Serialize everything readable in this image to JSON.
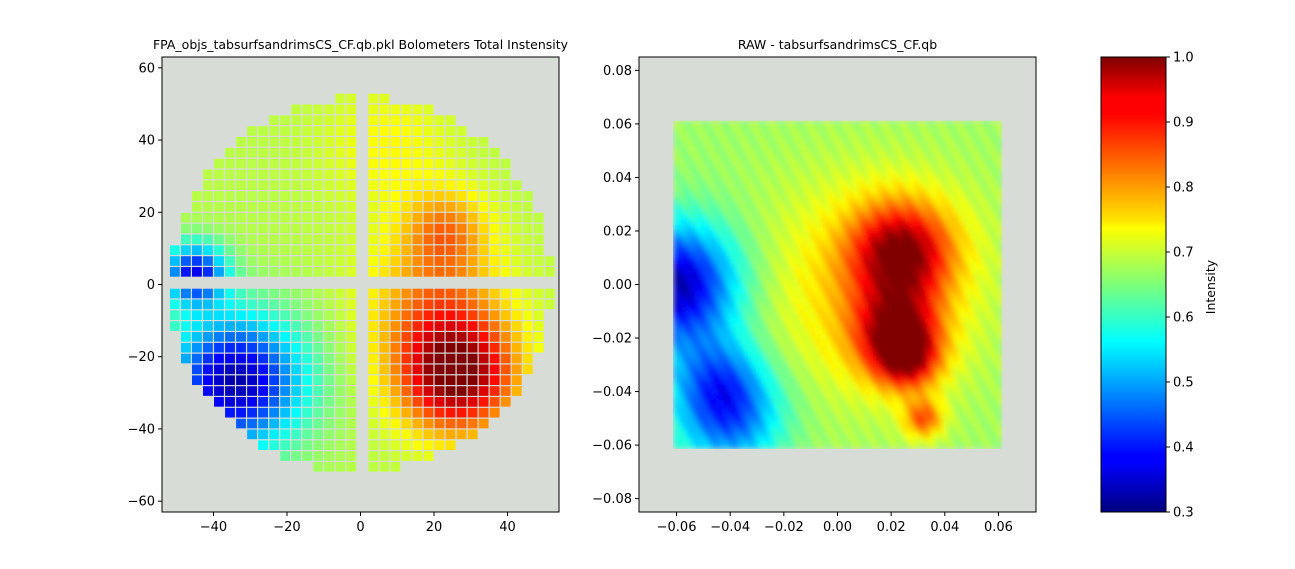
{
  "chart_data": [
    {
      "type": "heatmap",
      "title": "FPA_objs_tabsurfsandrimsCS_CF.qb.pkl Bolometers Total Instensity",
      "xlim": [
        -54,
        54
      ],
      "ylim": [
        -63,
        63
      ],
      "xticks": [
        -40,
        -20,
        0,
        20,
        40
      ],
      "xtick_labels": [
        "−40",
        "−20",
        "0",
        "20",
        "40"
      ],
      "yticks": [
        -60,
        -40,
        -20,
        0,
        20,
        40,
        60
      ],
      "ytick_labels": [
        "−60",
        "−40",
        "−20",
        "0",
        "20",
        "40",
        "60"
      ],
      "grid": false,
      "background_color": "#d8dcd6",
      "cell_pitch": 3,
      "focal_plane_radius": 52,
      "quadrant_gap_x": [
        -1,
        1
      ],
      "quadrant_gap_y": [
        -1,
        1
      ],
      "intensity_blobs": [
        {
          "x": 26,
          "y": -25,
          "sigma": 11,
          "amp": 0.32
        },
        {
          "x": 20,
          "y": -5,
          "sigma": 13,
          "amp": 0.12
        },
        {
          "x": 23,
          "y": 15,
          "sigma": 8,
          "amp": 0.12
        },
        {
          "x": -34,
          "y": -27,
          "sigma": 13,
          "amp": -0.36
        },
        {
          "x": -45,
          "y": 3,
          "sigma": 6,
          "amp": -0.3
        },
        {
          "x": 8,
          "y": 38,
          "sigma": 12,
          "amp": 0.05
        }
      ],
      "intensity_base": 0.69,
      "intensity_range": [
        0.3,
        1.0
      ]
    },
    {
      "type": "heatmap",
      "title": "RAW - tabsurfsandrimsCS_CF.qb",
      "xlim": [
        -0.074,
        0.074
      ],
      "ylim": [
        -0.085,
        0.085
      ],
      "xticks": [
        -0.06,
        -0.04,
        -0.02,
        0.0,
        0.02,
        0.04,
        0.06
      ],
      "xtick_labels": [
        "−0.06",
        "−0.04",
        "−0.02",
        "0.00",
        "0.02",
        "0.04",
        "0.06"
      ],
      "yticks": [
        -0.08,
        -0.06,
        -0.04,
        -0.02,
        0.0,
        0.02,
        0.04,
        0.06,
        0.08
      ],
      "ytick_labels": [
        "−0.08",
        "−0.06",
        "−0.04",
        "−0.02",
        "0.00",
        "0.02",
        "0.04",
        "0.06",
        "0.08"
      ],
      "grid": false,
      "background_color": "#d8dcd6",
      "data_extent": [
        -0.0612,
        0.0612,
        -0.0612,
        0.0612
      ],
      "intensity_blobs": [
        {
          "x": 0.024,
          "y": 0.012,
          "sigma": 0.013,
          "amp": 0.28
        },
        {
          "x": 0.022,
          "y": -0.018,
          "sigma": 0.011,
          "amp": 0.26
        },
        {
          "x": 0.026,
          "y": -0.028,
          "sigma": 0.008,
          "amp": 0.2
        },
        {
          "x": 0.012,
          "y": 0.0,
          "sigma": 0.028,
          "amp": 0.1
        },
        {
          "x": 0.032,
          "y": -0.05,
          "sigma": 0.005,
          "amp": 0.18
        },
        {
          "x": -0.06,
          "y": 0.0,
          "sigma": 0.016,
          "amp": -0.34
        },
        {
          "x": -0.04,
          "y": -0.05,
          "sigma": 0.014,
          "amp": -0.2
        },
        {
          "x": -0.045,
          "y": -0.035,
          "sigma": 0.012,
          "amp": -0.15
        }
      ],
      "intensity_base": 0.67,
      "intensity_range": [
        0.3,
        1.0
      ]
    }
  ],
  "colorbar": {
    "label": "Intensity",
    "colormap": "jet",
    "range": [
      0.3,
      1.0
    ],
    "ticks": [
      0.3,
      0.4,
      0.5,
      0.6,
      0.7,
      0.8,
      0.9,
      1.0
    ],
    "tick_labels": [
      "0.3",
      "0.4",
      "0.5",
      "0.6",
      "0.7",
      "0.8",
      "0.9",
      "1.0"
    ]
  }
}
